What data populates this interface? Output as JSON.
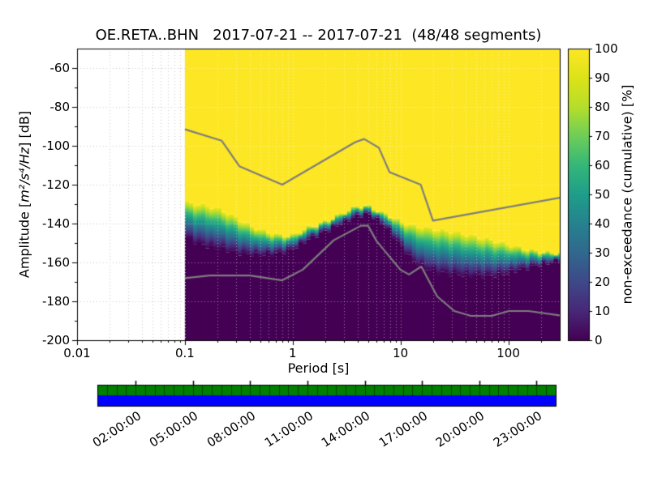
{
  "figure": {
    "title": "OE.RETA..BHN   2017-07-21 -- 2017-07-21  (48/48 segments)"
  },
  "axes": {
    "xlabel": "Period [s]",
    "ylabel": {
      "prefix": "Amplitude [",
      "math": "m²/s⁴/Hz",
      "suffix": "] [dB]"
    },
    "x_tick_labels": [
      "0.01",
      "0.1",
      "1",
      "10",
      "100"
    ],
    "x_tick_values": [
      0.01,
      0.1,
      1,
      10,
      100
    ],
    "y_tick_labels": [
      "-60",
      "-80",
      "-100",
      "-120",
      "-140",
      "-160",
      "-180",
      "-200"
    ],
    "y_tick_values": [
      -60,
      -80,
      -100,
      -120,
      -140,
      -160,
      -180,
      -200
    ]
  },
  "colorbar": {
    "label": "non-exceedance (cumulative) [%]",
    "tick_labels": [
      "0",
      "10",
      "20",
      "30",
      "40",
      "50",
      "60",
      "70",
      "80",
      "90",
      "100"
    ],
    "tick_values": [
      0,
      10,
      20,
      30,
      40,
      50,
      60,
      70,
      80,
      90,
      100
    ],
    "colors": [
      "#440154",
      "#482878",
      "#3e4989",
      "#31688e",
      "#26828e",
      "#1f9e89",
      "#35b779",
      "#6ece58",
      "#b5de2b",
      "#dde318",
      "#fde725"
    ]
  },
  "chart_data": {
    "type": "heatmap",
    "title": "OE.RETA..BHN   2017-07-21 -- 2017-07-21  (48/48 segments)",
    "station_id": "OE.RETA..BHN",
    "date_range": [
      "2017-07-21",
      "2017-07-21"
    ],
    "segments_used": 48,
    "segments_total": 48,
    "x_axis": {
      "label": "Period [s]",
      "scale": "log",
      "range": [
        0.01,
        300
      ],
      "ticks": [
        0.01,
        0.1,
        1,
        10,
        100
      ]
    },
    "y_axis": {
      "label": "Amplitude [m^2/s^4/Hz] [dB]",
      "range": [
        -200,
        -50
      ],
      "ticks": [
        -60,
        -80,
        -100,
        -120,
        -140,
        -160,
        -180,
        -200
      ]
    },
    "value_axis": {
      "label": "non-exceedance (cumulative) [%]",
      "range": [
        0,
        100
      ]
    },
    "colormap": "viridis",
    "grid": "dotted",
    "no_data_period_range": [
      0.01,
      0.1
    ],
    "ppsd_columns": [
      {
        "period": 0.1,
        "db_0pct": -147,
        "db_100pct": -129
      },
      {
        "period": 0.13,
        "db_0pct": -150,
        "db_100pct": -130
      },
      {
        "period": 0.17,
        "db_0pct": -152,
        "db_100pct": -131
      },
      {
        "period": 0.22,
        "db_0pct": -153,
        "db_100pct": -133
      },
      {
        "period": 0.3,
        "db_0pct": -155,
        "db_100pct": -137
      },
      {
        "period": 0.4,
        "db_0pct": -156,
        "db_100pct": -141
      },
      {
        "period": 0.55,
        "db_0pct": -156,
        "db_100pct": -144
      },
      {
        "period": 0.75,
        "db_0pct": -155,
        "db_100pct": -146
      },
      {
        "period": 1.0,
        "db_0pct": -153,
        "db_100pct": -146
      },
      {
        "period": 1.4,
        "db_0pct": -148,
        "db_100pct": -142
      },
      {
        "period": 2.0,
        "db_0pct": -144,
        "db_100pct": -139
      },
      {
        "period": 2.8,
        "db_0pct": -140,
        "db_100pct": -135
      },
      {
        "period": 4.0,
        "db_0pct": -136,
        "db_100pct": -131
      },
      {
        "period": 5.0,
        "db_0pct": -135,
        "db_100pct": -131
      },
      {
        "period": 6.5,
        "db_0pct": -139,
        "db_100pct": -134
      },
      {
        "period": 8.0,
        "db_0pct": -144,
        "db_100pct": -136
      },
      {
        "period": 10,
        "db_0pct": -151,
        "db_100pct": -139
      },
      {
        "period": 13,
        "db_0pct": -159,
        "db_100pct": -141
      },
      {
        "period": 17,
        "db_0pct": -163,
        "db_100pct": -142
      },
      {
        "period": 22,
        "db_0pct": -165,
        "db_100pct": -143
      },
      {
        "period": 30,
        "db_0pct": -166,
        "db_100pct": -144
      },
      {
        "period": 45,
        "db_0pct": -167,
        "db_100pct": -146
      },
      {
        "period": 65,
        "db_0pct": -167,
        "db_100pct": -148
      },
      {
        "period": 90,
        "db_0pct": -166,
        "db_100pct": -150
      },
      {
        "period": 120,
        "db_0pct": -164,
        "db_100pct": -152
      },
      {
        "period": 170,
        "db_0pct": -162,
        "db_100pct": -154
      },
      {
        "period": 250,
        "db_0pct": -160,
        "db_100pct": -155
      },
      {
        "period": 300,
        "db_0pct": -159,
        "db_100pct": -155
      }
    ],
    "noise_models": [
      {
        "name": "high noise model",
        "color": "#7d7d7d",
        "points": [
          [
            0.1,
            -91.5
          ],
          [
            0.22,
            -97.4
          ],
          [
            0.32,
            -110.5
          ],
          [
            0.8,
            -120.0
          ],
          [
            3.8,
            -98.1
          ],
          [
            4.6,
            -96.5
          ],
          [
            6.3,
            -101.0
          ],
          [
            7.9,
            -113.5
          ],
          [
            15.4,
            -120.0
          ],
          [
            20.0,
            -138.5
          ],
          [
            354.8,
            -126.0
          ]
        ]
      },
      {
        "name": "low noise model",
        "color": "#7d7d7d",
        "points": [
          [
            0.1,
            -168.1
          ],
          [
            0.17,
            -166.7
          ],
          [
            0.4,
            -166.7
          ],
          [
            0.8,
            -169.2
          ],
          [
            1.24,
            -163.7
          ],
          [
            2.4,
            -148.6
          ],
          [
            4.3,
            -141.1
          ],
          [
            5.0,
            -141.1
          ],
          [
            6.0,
            -149.0
          ],
          [
            10.0,
            -163.8
          ],
          [
            12.0,
            -166.2
          ],
          [
            15.6,
            -162.1
          ],
          [
            21.9,
            -177.5
          ],
          [
            31.6,
            -185.0
          ],
          [
            45.0,
            -187.5
          ],
          [
            70.0,
            -187.5
          ],
          [
            101.0,
            -185.0
          ],
          [
            154.0,
            -185.0
          ],
          [
            328.2,
            -187.5
          ]
        ]
      }
    ]
  },
  "timeline": {
    "top_bar_color": "#008000",
    "bottom_bar_color": "#0000ff",
    "segment_count": 48,
    "tick_labels": [
      "02:00:00",
      "05:00:00",
      "08:00:00",
      "11:00:00",
      "14:00:00",
      "17:00:00",
      "20:00:00",
      "23:00:00"
    ],
    "tick_hours": [
      2,
      5,
      8,
      11,
      14,
      17,
      20,
      23
    ]
  }
}
